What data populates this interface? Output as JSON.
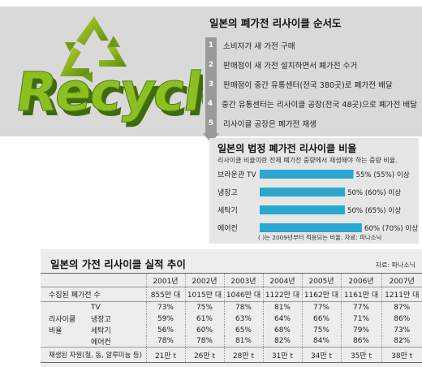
{
  "logo": {
    "word": "Recycle",
    "symbol": "recycle-icon"
  },
  "process": {
    "title": "일본의 폐가전 리사이클 순서도",
    "steps": [
      {
        "num": "1",
        "text": "소비자가 새 가전 구매"
      },
      {
        "num": "2",
        "text": "판매점이 새 가전 설치하면서 폐가전 수거"
      },
      {
        "num": "3",
        "text": "판매점이 중간 유통센터(전국 380곳)로 폐가전 배달"
      },
      {
        "num": "4",
        "text": "중간 유통센터는 리사이클 공장(전국 48곳)으로 폐가전 배달"
      },
      {
        "num": "5",
        "text": "리사이클 공장은 폐가전 재생"
      }
    ]
  },
  "rate_panel": {
    "title": "일본의 법정 폐가전 리사이클 비율",
    "subtitle": "리사이클 비율이란 전체 폐가전 중량에서 재생해야 하는 중량 비율.",
    "note": "( )는 2009년부터 적용되는 비율.   자료: 파나소닉",
    "colors": {
      "bar": "#2aa8cf"
    }
  },
  "chart_data": [
    {
      "type": "bar",
      "orientation": "horizontal",
      "title": "일본의 법정 폐가전 리사이클 비율",
      "categories": [
        "브라운관 TV",
        "냉장고",
        "세탁기",
        "에어컨"
      ],
      "values": [
        55,
        50,
        50,
        60
      ],
      "values_2009": [
        55,
        60,
        65,
        70
      ],
      "labels": [
        "55% (55%) 이상",
        "50% (60%) 이상",
        "50% (65%) 이상",
        "60% (70%) 이상"
      ],
      "xlim": [
        0,
        60
      ]
    },
    {
      "type": "table",
      "title": "일본의 가전 리사이클 실적 추이",
      "source": "자료: 파나소닉",
      "years": [
        "2001년",
        "2002년",
        "2003년",
        "2004년",
        "2005년",
        "2006년",
        "2007년"
      ],
      "collected_label": "수집된 폐가전 수",
      "collected": [
        "855만 대",
        "1015만 대",
        "1046만 대",
        "1122만 대",
        "1162만 대",
        "1161만 대",
        "1211만 대"
      ],
      "rate_label_1": "리사이클",
      "rate_label_2": "비율",
      "rate_rows": [
        {
          "name": "TV",
          "values": [
            "73%",
            "75%",
            "78%",
            "81%",
            "77%",
            "77%",
            "87%"
          ]
        },
        {
          "name": "냉장고",
          "values": [
            "59%",
            "61%",
            "63%",
            "64%",
            "66%",
            "71%",
            "86%"
          ]
        },
        {
          "name": "세탁기",
          "values": [
            "56%",
            "60%",
            "65%",
            "68%",
            "75%",
            "79%",
            "73%"
          ]
        },
        {
          "name": "에어컨",
          "values": [
            "78%",
            "78%",
            "81%",
            "82%",
            "84%",
            "86%",
            "82%"
          ]
        }
      ],
      "resources_label": "재생된 자원(철, 동, 알루미늄 등)",
      "resources": [
        "21만 t",
        "26만 t",
        "28만 t",
        "31만 t",
        "34만 t",
        "35만 t",
        "38만 t"
      ]
    }
  ]
}
